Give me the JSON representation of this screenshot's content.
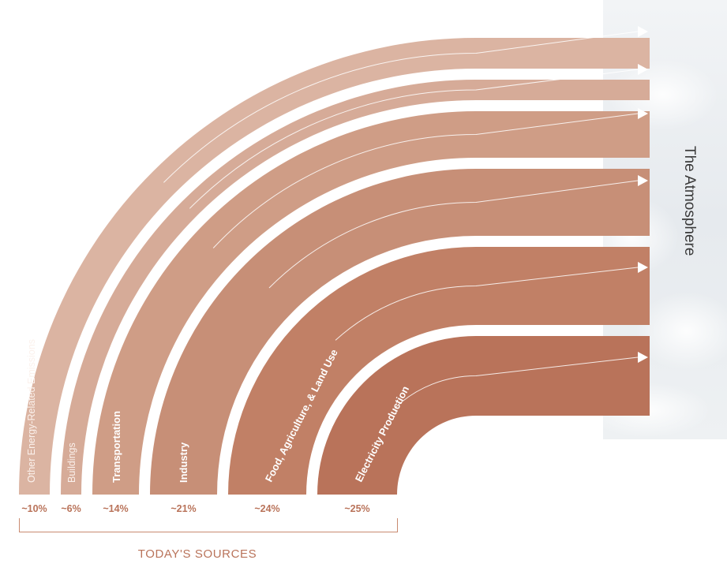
{
  "atmosphere": {
    "label": "The Atmosphere"
  },
  "footer": {
    "label": "TODAY'S SOURCES"
  },
  "chart_data": {
    "type": "sankey",
    "target": "The Atmosphere",
    "sources": [
      {
        "name": "Other Energy-Related Emissions",
        "share": "~10%",
        "value": 10,
        "color": "#dbb4a2"
      },
      {
        "name": "Buildings",
        "share": "~6%",
        "value": 6,
        "color": "#d6ab98"
      },
      {
        "name": "Transportation",
        "share": "~14%",
        "value": 14,
        "color": "#cf9d86"
      },
      {
        "name": "Industry",
        "share": "~21%",
        "value": 21,
        "color": "#c78f77"
      },
      {
        "name": "Food, Agriculture, & Land Use",
        "share": "~24%",
        "value": 24,
        "color": "#c18066"
      },
      {
        "name": "Electricity Production",
        "share": "~25%",
        "value": 25,
        "color": "#b9735a"
      }
    ],
    "axis_label": "TODAY'S SOURCES"
  }
}
